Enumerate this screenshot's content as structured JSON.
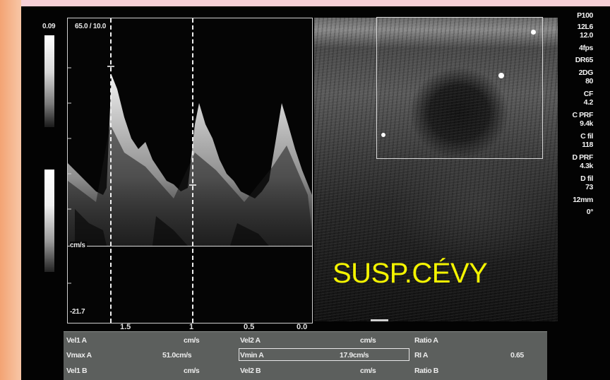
{
  "left_scale": {
    "top_value": "0.09"
  },
  "doppler": {
    "header": "65.0 / 10.0",
    "baseline_unit": "cm/s",
    "bottom_value": "-21.7",
    "x_ticks": [
      "1.5",
      "1",
      "0.5",
      "0.0"
    ]
  },
  "side_params": [
    "P100",
    "12L6",
    "12.0",
    "4fps",
    "DR65",
    "2DG",
    "80",
    "CF",
    "4.2",
    "C PRF",
    "9.4k",
    "C fil",
    "118",
    "D PRF",
    "4.3k",
    "D fil",
    "73",
    "12mm",
    "0°"
  ],
  "annotation": "SUSP.CÉVY",
  "measurements": {
    "row1": {
      "c1": "Vel1 A",
      "c2": "cm/s",
      "c3": "Vel2 A",
      "c4": "cm/s",
      "c5": "Ratio A"
    },
    "row2": {
      "c1": "Vmax A",
      "c2": "51.0cm/s",
      "c3": "Vmin A",
      "c4": "17.9cm/s",
      "c5": "RI A",
      "c6": "0.65"
    },
    "row3": {
      "c1": "Vel1 B",
      "c2": "cm/s",
      "c3": "Vel2 B",
      "c4": "cm/s",
      "c5": "Ratio B"
    }
  }
}
